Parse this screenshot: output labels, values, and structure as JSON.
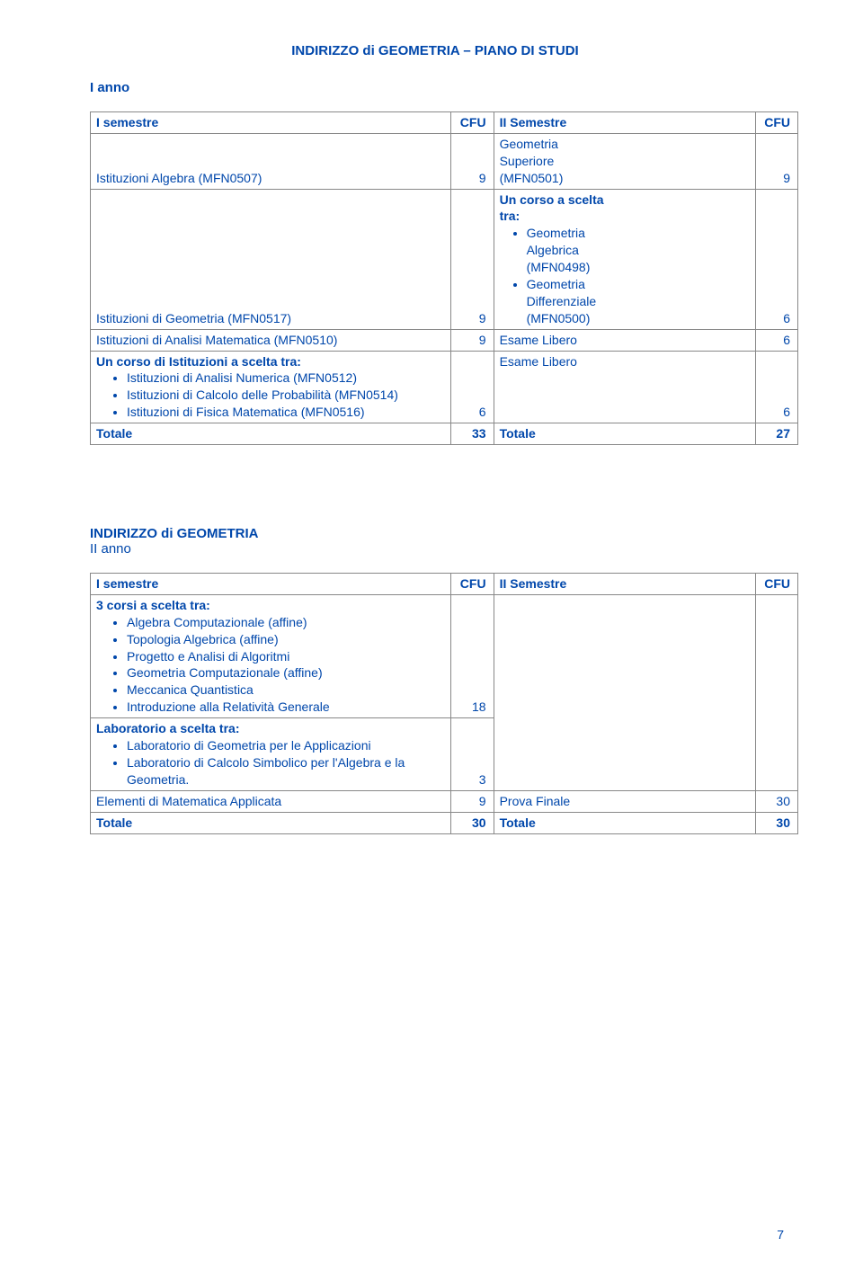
{
  "title": "INDIRIZZO di GEOMETRIA – PIANO DI STUDI",
  "year1": "I anno",
  "hdr": {
    "a": "I semestre",
    "b": "CFU",
    "c": "II Semestre",
    "d": "CFU"
  },
  "t1": {
    "r1": {
      "a": "Istituzioni Algebra (MFN0507)",
      "b": "9",
      "cpre": "Geometria\nSuperiore\n(MFN0501)",
      "d": "9"
    },
    "r2": {
      "a": "Istituzioni di Geometria (MFN0517)",
      "b": "9",
      "cpre": "Un corso a scelta\ntra:",
      "items": [
        "Geometria\nAlgebrica\n(MFN0498)",
        "Geometria\nDifferenziale\n(MFN0500)"
      ],
      "d": "6"
    },
    "r3": {
      "a": "Istituzioni di Analisi Matematica (MFN0510)",
      "b": "9",
      "c": "Esame Libero",
      "d": "6"
    },
    "r4": {
      "apre": "Un corso di Istituzioni a  scelta tra:",
      "aitems": [
        "Istituzioni di Analisi Numerica (MFN0512)",
        "Istituzioni di Calcolo delle Probabilità (MFN0514)",
        "Istituzioni di Fisica Matematica (MFN0516)"
      ],
      "b": "6",
      "c": "Esame Libero",
      "d": "6"
    },
    "tot": {
      "a": "Totale",
      "b": "33",
      "c": "Totale",
      "d": "27"
    }
  },
  "sec2title": "INDIRIZZO di GEOMETRIA",
  "year2": "II anno",
  "t2": {
    "r1": {
      "apre": "3 corsi a scelta tra:",
      "aitems": [
        "Algebra Computazionale (affine)",
        "Topologia Algebrica (affine)",
        "Progetto e Analisi di Algoritmi",
        "Geometria Computazionale (affine)",
        "Meccanica Quantistica",
        "Introduzione alla Relatività Generale"
      ],
      "b": "18"
    },
    "r2": {
      "apre": "Laboratorio  a scelta tra:",
      "aitems": [
        "Laboratorio di Geometria per le Applicazioni",
        "Laboratorio di Calcolo Simbolico per l'Algebra e la Geometria."
      ],
      "b": "3"
    },
    "r3": {
      "a": "Elementi di Matematica Applicata",
      "b": "9",
      "c": "Prova Finale",
      "d": "30"
    },
    "tot": {
      "a": "Totale",
      "b": "30",
      "c": "Totale",
      "d": "30"
    }
  },
  "pagenum": "7"
}
